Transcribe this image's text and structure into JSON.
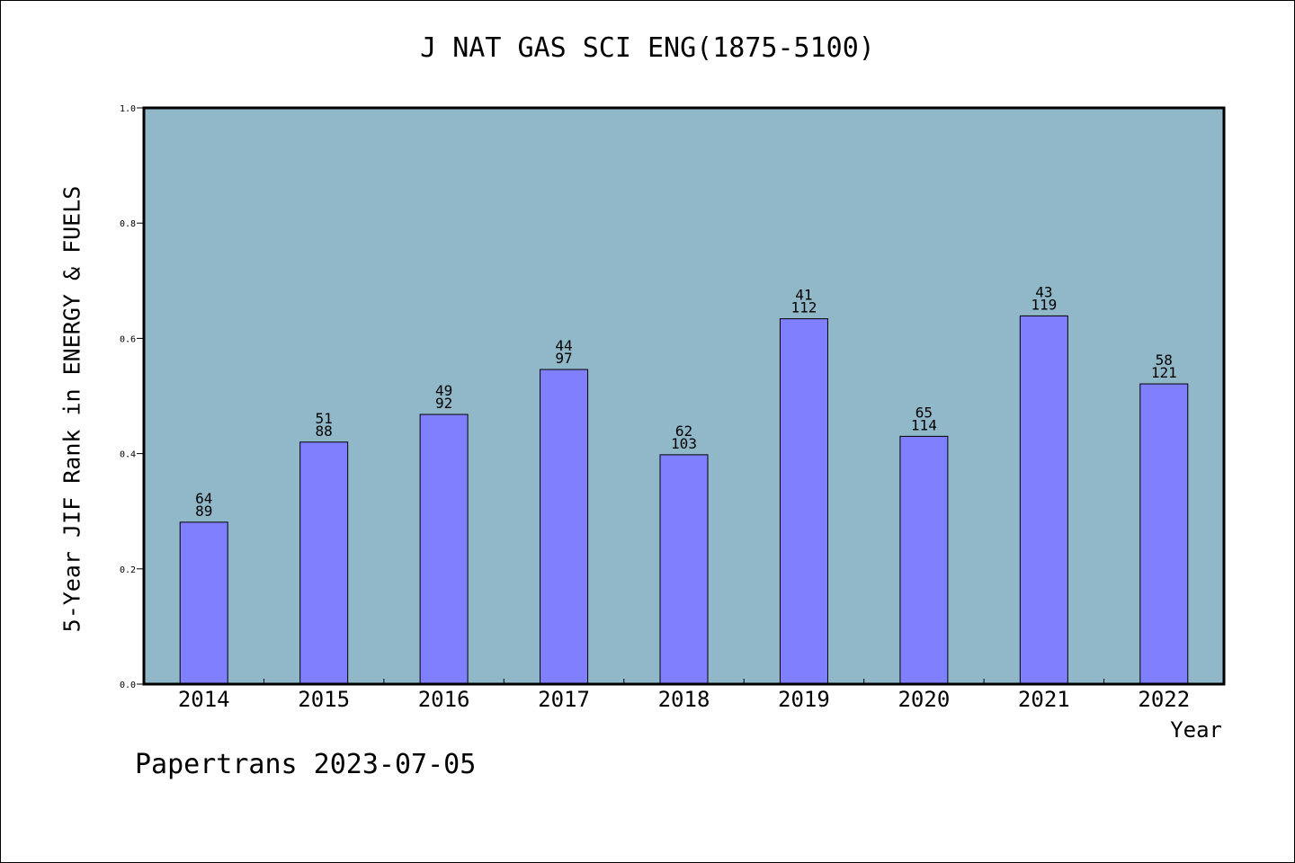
{
  "chart_data": {
    "type": "bar",
    "title": "J NAT GAS SCI ENG(1875-5100)",
    "ylabel": "5-Year JIF Rank in ENERGY & FUELS",
    "xlabel": "Year",
    "categories": [
      "2014",
      "2015",
      "2016",
      "2017",
      "2018",
      "2019",
      "2020",
      "2021",
      "2022"
    ],
    "values": [
      0.281,
      0.42,
      0.468,
      0.546,
      0.398,
      0.634,
      0.43,
      0.639,
      0.521
    ],
    "label_top": [
      "64",
      "51",
      "49",
      "44",
      "62",
      "41",
      "65",
      "43",
      "58"
    ],
    "label_bottom": [
      "89",
      "88",
      "92",
      "97",
      "103",
      "112",
      "114",
      "119",
      "121"
    ],
    "ylim": [
      0,
      1.0
    ],
    "yticks": [
      "0.0",
      "0.2",
      "0.4",
      "0.6",
      "0.8",
      "1.0"
    ],
    "colors": {
      "plot_background": "#90b8c8",
      "bar": "#8080ff"
    },
    "grid": false,
    "legend": "none"
  },
  "footer": "Papertrans 2023-07-05"
}
